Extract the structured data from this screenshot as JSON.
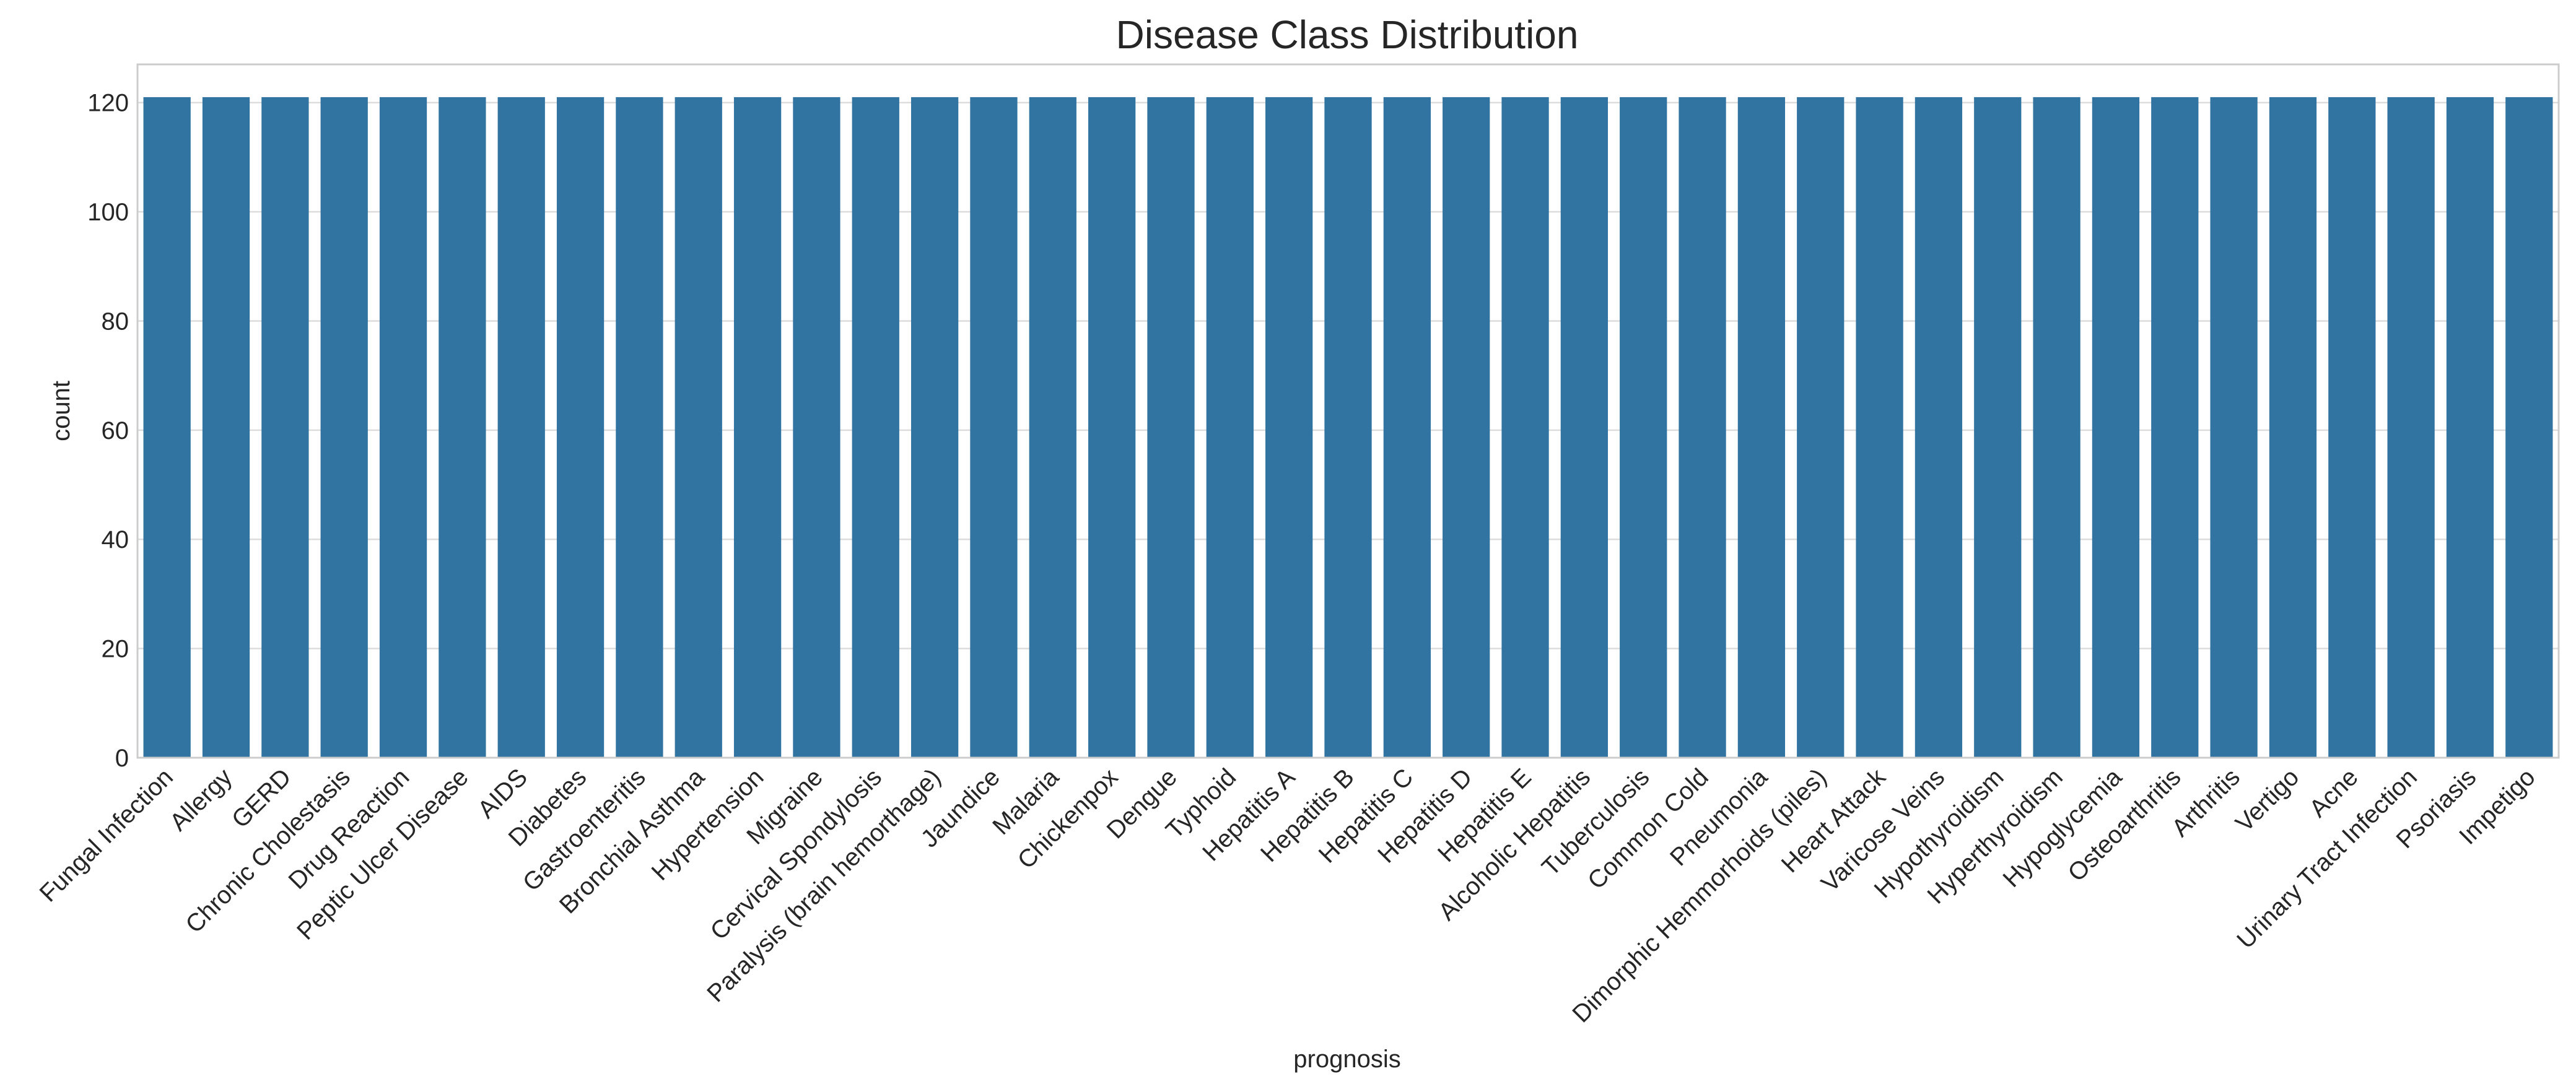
{
  "chart_data": {
    "type": "bar",
    "title": "Disease Class Distribution",
    "xlabel": "prognosis",
    "ylabel": "count",
    "ylim": [
      0,
      127
    ],
    "yticks": [
      0,
      20,
      40,
      60,
      80,
      100,
      120
    ],
    "grid": true,
    "bar_color": "#3274a1",
    "categories": [
      "Fungal Infection",
      "Allergy",
      "GERD",
      "Chronic Cholestasis",
      "Drug Reaction",
      "Peptic Ulcer Disease",
      "AIDS",
      "Diabetes",
      "Gastroenteritis",
      "Bronchial Asthma",
      "Hypertension",
      "Migraine",
      "Cervical Spondylosis",
      "Paralysis (brain hemorthage)",
      "Jaundice",
      "Malaria",
      "Chickenpox",
      "Dengue",
      "Typhoid",
      "Hepatitis A",
      "Hepatitis B",
      "Hepatitis C",
      "Hepatitis D",
      "Hepatitis E",
      "Alcoholic Hepatitis",
      "Tuberculosis",
      "Common Cold",
      "Pneumonia",
      "Dimorphic Hemmorhoids (piles)",
      "Heart Attack",
      "Varicose Veins",
      "Hypothyroidism",
      "Hyperthyroidism",
      "Hypoglycemia",
      "Osteoarthritis",
      "Arthritis",
      "Vertigo",
      "Acne",
      "Urinary Tract Infection",
      "Psoriasis",
      "Impetigo"
    ],
    "values": [
      121,
      121,
      121,
      121,
      121,
      121,
      121,
      121,
      121,
      121,
      121,
      121,
      121,
      121,
      121,
      121,
      121,
      121,
      121,
      121,
      121,
      121,
      121,
      121,
      121,
      121,
      121,
      121,
      121,
      121,
      121,
      121,
      121,
      121,
      121,
      121,
      121,
      121,
      121,
      121,
      121
    ]
  }
}
